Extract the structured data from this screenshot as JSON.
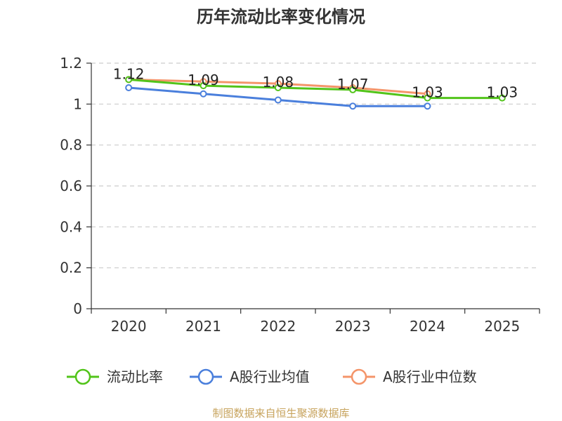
{
  "chart_data": {
    "type": "line",
    "title": "历年流动比率变化情况",
    "categories": [
      "2020",
      "2021",
      "2022",
      "2023",
      "2024",
      "2025"
    ],
    "y_ticks": [
      "0",
      "0.2",
      "0.4",
      "0.6",
      "0.8",
      "1",
      "1.2"
    ],
    "ylim": [
      0,
      1.2
    ],
    "grid": true,
    "legend_position": "bottom",
    "series": [
      {
        "name": "流动比率",
        "color": "#52c41a",
        "values": [
          1.12,
          1.09,
          1.08,
          1.07,
          1.03,
          1.03
        ],
        "labels": [
          "1.12",
          "1.09",
          "1.08",
          "1.07",
          "1.03",
          "1.03"
        ]
      },
      {
        "name": "A股行业均值",
        "color": "#4a7fdc",
        "values": [
          1.08,
          1.05,
          1.02,
          0.99,
          0.99,
          null
        ]
      },
      {
        "name": "A股行业中位数",
        "color": "#f4956a",
        "values": [
          1.12,
          1.11,
          1.1,
          1.08,
          1.05,
          null
        ]
      }
    ],
    "source": "制图数据来自恒生聚源数据库"
  }
}
